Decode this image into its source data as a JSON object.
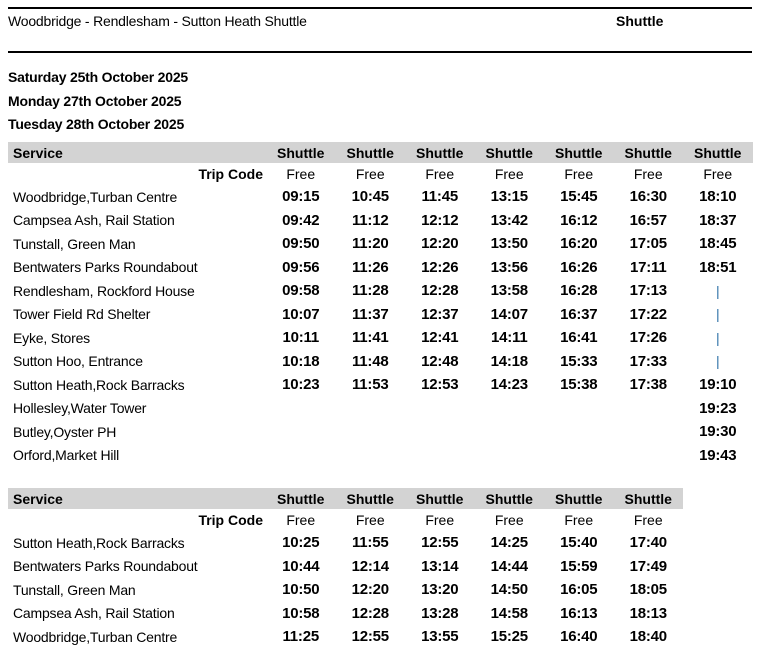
{
  "header": {
    "title": "Woodbridge - Rendlesham - Sutton Heath Shuttle",
    "service_tag": "Shuttle"
  },
  "dates": [
    "Saturday 25th October 2025",
    "Monday 27th October 2025",
    "Tuesday 28th October 2025"
  ],
  "colors": {
    "header_band": "#d3d3d3",
    "pipe": "#2f73a8",
    "text": "#000000"
  },
  "tables": [
    {
      "service_label": "Service",
      "trip_code_label": "Trip Code",
      "column_headers": [
        "Shuttle",
        "Shuttle",
        "Shuttle",
        "Shuttle",
        "Shuttle",
        "Shuttle",
        "Shuttle"
      ],
      "trip_codes": [
        "Free",
        "Free",
        "Free",
        "Free",
        "Free",
        "Free",
        "Free"
      ],
      "rows": [
        {
          "stop": "Woodbridge,Turban Centre",
          "times": [
            "09:15",
            "10:45",
            "11:45",
            "13:15",
            "15:45",
            "16:30",
            "18:10"
          ]
        },
        {
          "stop": "Campsea Ash, Rail Station",
          "times": [
            "09:42",
            "11:12",
            "12:12",
            "13:42",
            "16:12",
            "16:57",
            "18:37"
          ]
        },
        {
          "stop": "Tunstall, Green Man",
          "times": [
            "09:50",
            "11:20",
            "12:20",
            "13:50",
            "16:20",
            "17:05",
            "18:45"
          ]
        },
        {
          "stop": "Bentwaters Parks Roundabout",
          "times": [
            "09:56",
            "11:26",
            "12:26",
            "13:56",
            "16:26",
            "17:11",
            "18:51"
          ]
        },
        {
          "stop": "Rendlesham, Rockford House",
          "times": [
            "09:58",
            "11:28",
            "12:28",
            "13:58",
            "16:28",
            "17:13",
            "|"
          ]
        },
        {
          "stop": "Tower Field Rd Shelter",
          "times": [
            "10:07",
            "11:37",
            "12:37",
            "14:07",
            "16:37",
            "17:22",
            "|"
          ]
        },
        {
          "stop": "Eyke, Stores",
          "times": [
            "10:11",
            "11:41",
            "12:41",
            "14:11",
            "16:41",
            "17:26",
            "|"
          ]
        },
        {
          "stop": "Sutton Hoo, Entrance",
          "times": [
            "10:18",
            "11:48",
            "12:48",
            "14:18",
            "15:33",
            "17:33",
            "|"
          ]
        },
        {
          "stop": "Sutton Heath,Rock Barracks",
          "times": [
            "10:23",
            "11:53",
            "12:53",
            "14:23",
            "15:38",
            "17:38",
            "19:10"
          ]
        },
        {
          "stop": "Hollesley,Water Tower",
          "times": [
            "",
            "",
            "",
            "",
            "",
            "",
            "19:23"
          ]
        },
        {
          "stop": "Butley,Oyster PH",
          "times": [
            "",
            "",
            "",
            "",
            "",
            "",
            "19:30"
          ]
        },
        {
          "stop": "Orford,Market Hill",
          "times": [
            "",
            "",
            "",
            "",
            "",
            "",
            "19:43"
          ]
        }
      ]
    },
    {
      "service_label": "Service",
      "trip_code_label": "Trip Code",
      "column_headers": [
        "Shuttle",
        "Shuttle",
        "Shuttle",
        "Shuttle",
        "Shuttle",
        "Shuttle"
      ],
      "trip_codes": [
        "Free",
        "Free",
        "Free",
        "Free",
        "Free",
        "Free"
      ],
      "rows": [
        {
          "stop": "Sutton Heath,Rock Barracks",
          "times": [
            "10:25",
            "11:55",
            "12:55",
            "14:25",
            "15:40",
            "17:40"
          ]
        },
        {
          "stop": "Bentwaters Parks Roundabout",
          "times": [
            "10:44",
            "12:14",
            "13:14",
            "14:44",
            "15:59",
            "17:49"
          ]
        },
        {
          "stop": "Tunstall, Green Man",
          "times": [
            "10:50",
            "12:20",
            "13:20",
            "14:50",
            "16:05",
            "18:05"
          ]
        },
        {
          "stop": "Campsea Ash, Rail Station",
          "times": [
            "10:58",
            "12:28",
            "13:28",
            "14:58",
            "16:13",
            "18:13"
          ]
        },
        {
          "stop": "Woodbridge,Turban Centre",
          "times": [
            "11:25",
            "12:55",
            "13:55",
            "15:25",
            "16:40",
            "18:40"
          ]
        }
      ]
    }
  ]
}
